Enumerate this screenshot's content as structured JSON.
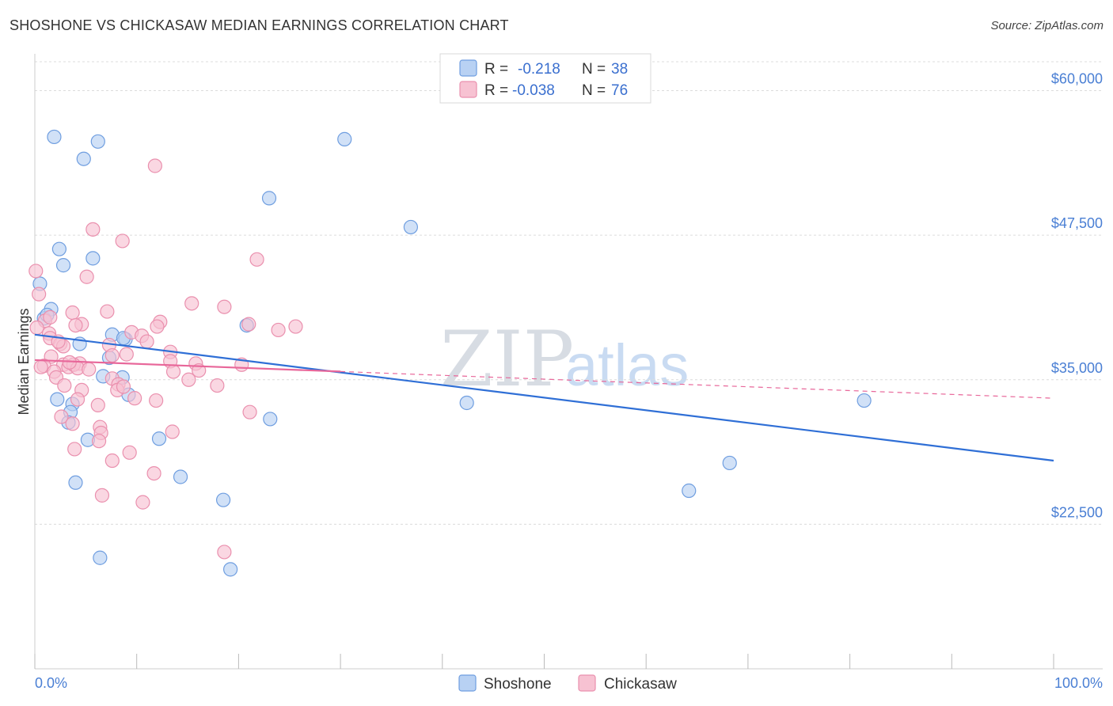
{
  "title": "SHOSHONE VS CHICKASAW MEDIAN EARNINGS CORRELATION CHART",
  "source": "Source: ZipAtlas.com",
  "watermark": {
    "zip": "ZIP",
    "atlas": "atlas"
  },
  "colors": {
    "shoshone_fill": "#b8d1f3",
    "shoshone_stroke": "#6f9ee0",
    "shoshone_line": "#2f6fd6",
    "chickasaw_fill": "#f7c2d2",
    "chickasaw_stroke": "#ea90ae",
    "chickasaw_line": "#e8679a",
    "axis_text": "#4a7fd4",
    "grid": "#dcdcdc"
  },
  "legend": {
    "rows": [
      {
        "name": "Shoshone",
        "r_label": "R =",
        "r_value": "-0.218",
        "n_label": "N =",
        "n_value": "38"
      },
      {
        "name": "Chickasaw",
        "r_label": "R =",
        "r_value": "-0.038",
        "n_label": "N =",
        "n_value": "76"
      }
    ]
  },
  "chart_data": {
    "type": "scatter",
    "title": "SHOSHONE VS CHICKASAW MEDIAN EARNINGS CORRELATION CHART",
    "xlabel": "",
    "ylabel": "Median Earnings",
    "xlim": [
      0,
      100
    ],
    "ylim": [
      10000,
      62500
    ],
    "x_tick_labels": [
      "0.0%",
      "100.0%"
    ],
    "y_ticks": [
      22500,
      35000,
      47500,
      60000
    ],
    "y_tick_labels": [
      "$22,500",
      "$35,000",
      "$47,500",
      "$60,000"
    ],
    "grid": true,
    "legend_position": "top-center",
    "series": [
      {
        "name": "Shoshone",
        "points": [
          [
            1.9,
            56000
          ],
          [
            6.2,
            55600
          ],
          [
            4.8,
            54100
          ],
          [
            30.4,
            55800
          ],
          [
            23.0,
            50700
          ],
          [
            36.9,
            48200
          ],
          [
            2.4,
            46300
          ],
          [
            5.7,
            45500
          ],
          [
            2.8,
            44900
          ],
          [
            0.5,
            43300
          ],
          [
            1.6,
            41100
          ],
          [
            0.9,
            40300
          ],
          [
            1.2,
            40600
          ],
          [
            7.6,
            38900
          ],
          [
            8.9,
            38500
          ],
          [
            20.8,
            39700
          ],
          [
            4.4,
            38100
          ],
          [
            8.7,
            38600
          ],
          [
            7.3,
            36900
          ],
          [
            6.7,
            35300
          ],
          [
            8.6,
            35200
          ],
          [
            9.2,
            33700
          ],
          [
            2.2,
            33300
          ],
          [
            3.7,
            32900
          ],
          [
            3.5,
            32200
          ],
          [
            3.3,
            31300
          ],
          [
            23.1,
            31600
          ],
          [
            42.4,
            33000
          ],
          [
            81.4,
            33200
          ],
          [
            5.2,
            29800
          ],
          [
            12.2,
            29900
          ],
          [
            4.0,
            26100
          ],
          [
            14.3,
            26600
          ],
          [
            68.2,
            27800
          ],
          [
            64.2,
            25400
          ],
          [
            18.5,
            24600
          ],
          [
            6.4,
            19600
          ],
          [
            19.2,
            18600
          ]
        ],
        "trend": {
          "x": [
            0,
            100
          ],
          "y": [
            38900,
            28000
          ]
        }
      },
      {
        "name": "Chickasaw",
        "points": [
          [
            0.1,
            44400
          ],
          [
            11.8,
            53500
          ],
          [
            5.7,
            48000
          ],
          [
            8.6,
            47000
          ],
          [
            21.8,
            45400
          ],
          [
            5.1,
            43900
          ],
          [
            0.4,
            42400
          ],
          [
            15.4,
            41600
          ],
          [
            18.6,
            41300
          ],
          [
            3.7,
            40800
          ],
          [
            7.1,
            40900
          ],
          [
            1.0,
            40100
          ],
          [
            12.3,
            40000
          ],
          [
            21.0,
            39800
          ],
          [
            25.6,
            39600
          ],
          [
            23.9,
            39300
          ],
          [
            4.6,
            39800
          ],
          [
            12.0,
            39600
          ],
          [
            1.4,
            39000
          ],
          [
            9.5,
            39100
          ],
          [
            10.5,
            38800
          ],
          [
            1.5,
            38600
          ],
          [
            2.5,
            38100
          ],
          [
            11.0,
            38300
          ],
          [
            7.3,
            38000
          ],
          [
            2.8,
            37900
          ],
          [
            13.3,
            37400
          ],
          [
            7.6,
            37100
          ],
          [
            9.0,
            37200
          ],
          [
            1.6,
            37000
          ],
          [
            13.3,
            36600
          ],
          [
            4.4,
            36400
          ],
          [
            2.8,
            36300
          ],
          [
            3.3,
            36100
          ],
          [
            3.8,
            36300
          ],
          [
            0.9,
            36200
          ],
          [
            15.8,
            36400
          ],
          [
            20.3,
            36300
          ],
          [
            4.2,
            36000
          ],
          [
            5.3,
            35900
          ],
          [
            1.9,
            35700
          ],
          [
            13.6,
            35700
          ],
          [
            16.1,
            35800
          ],
          [
            2.1,
            35200
          ],
          [
            7.6,
            35100
          ],
          [
            8.2,
            34600
          ],
          [
            15.1,
            35000
          ],
          [
            17.9,
            34500
          ],
          [
            4.6,
            34100
          ],
          [
            2.9,
            34500
          ],
          [
            8.1,
            34100
          ],
          [
            8.7,
            34400
          ],
          [
            9.8,
            33400
          ],
          [
            11.9,
            33200
          ],
          [
            6.2,
            32800
          ],
          [
            4.2,
            33300
          ],
          [
            21.1,
            32200
          ],
          [
            2.6,
            31800
          ],
          [
            3.7,
            31200
          ],
          [
            6.4,
            30900
          ],
          [
            6.5,
            30400
          ],
          [
            13.5,
            30500
          ],
          [
            6.3,
            29700
          ],
          [
            3.9,
            29000
          ],
          [
            9.3,
            28700
          ],
          [
            7.6,
            28000
          ],
          [
            11.7,
            26900
          ],
          [
            6.6,
            25000
          ],
          [
            10.6,
            24400
          ],
          [
            18.6,
            20100
          ],
          [
            0.6,
            36100
          ],
          [
            2.3,
            38300
          ],
          [
            0.2,
            39500
          ],
          [
            4.0,
            39700
          ],
          [
            1.5,
            40400
          ],
          [
            3.4,
            36500
          ]
        ],
        "trend": {
          "x": [
            0,
            100
          ],
          "y": [
            36700,
            33400
          ],
          "solid_until": 30
        }
      }
    ]
  }
}
